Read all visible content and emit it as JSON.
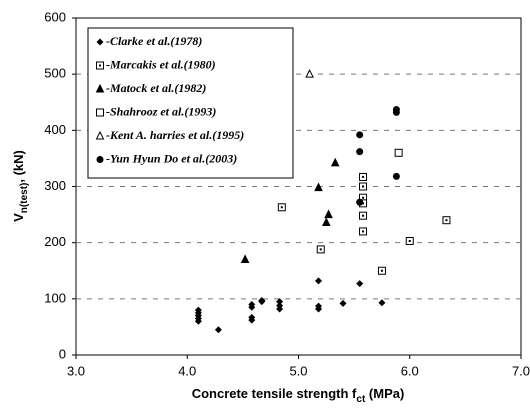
{
  "chart_data": {
    "type": "scatter",
    "xlabel": "Concrete tensile strength f",
    "xlabel_sub": "ct",
    "xlabel_end": " (MPa)",
    "ylabel": "V",
    "ylabel_sub": "n(test)",
    "ylabel_end": ", (kN)",
    "xlim": [
      3,
      7
    ],
    "xticks": [
      {
        "value": 3,
        "label": "3.0"
      },
      {
        "value": 4,
        "label": "4.0"
      },
      {
        "value": 5,
        "label": "5.0"
      },
      {
        "value": 6,
        "label": "6.0"
      },
      {
        "value": 7,
        "label": "7.0"
      }
    ],
    "ylim": [
      0,
      600
    ],
    "yticks": [
      0,
      100,
      200,
      300,
      400,
      500,
      600
    ],
    "grid": true,
    "legend": "upper left",
    "series": [
      {
        "name": "-Clarke et al.(1978)",
        "color": "#000000",
        "marker": "diamond",
        "x": [
          4.1,
          4.1,
          4.1,
          4.1,
          4.1,
          4.28,
          4.58,
          4.58,
          4.58,
          4.58,
          4.67,
          4.67,
          4.83,
          4.83,
          4.83,
          5.18,
          5.18,
          5.18,
          5.4,
          5.55,
          5.75
        ],
        "values": [
          60,
          65,
          70,
          75,
          80,
          45,
          62,
          67,
          85,
          90,
          95,
          97,
          82,
          88,
          95,
          82,
          87,
          132,
          92,
          127,
          93
        ]
      },
      {
        "name": "-Marcakis et al.(1980)",
        "color": "#000000",
        "marker": "square-dot",
        "x": [
          4.85,
          5.2,
          5.58,
          5.58,
          5.58,
          5.58,
          5.58,
          5.58,
          5.75,
          6.0,
          6.33
        ],
        "values": [
          263,
          188,
          317,
          300,
          280,
          270,
          248,
          220,
          150,
          203,
          240
        ]
      },
      {
        "name": "-Matock et al.(1982)",
        "color": "#000000",
        "marker": "triangle",
        "x": [
          4.52,
          5.18,
          5.25,
          5.27,
          5.33
        ],
        "values": [
          170,
          298,
          236,
          250,
          342
        ]
      },
      {
        "name": "-Shahrooz et al.(1993)",
        "color": "#000000",
        "marker": "square",
        "x": [
          5.9
        ],
        "values": [
          360
        ]
      },
      {
        "name": "-Kent A. harries et al.(1995)",
        "color": "#000000",
        "marker": "triangle-open",
        "x": [
          5.1
        ],
        "values": [
          500
        ]
      },
      {
        "name": "-Yun Hyun Do et al.(2003)",
        "color": "#000000",
        "marker": "circle",
        "x": [
          5.55,
          5.55,
          5.55,
          5.88,
          5.88,
          5.88
        ],
        "values": [
          392,
          362,
          272,
          437,
          432,
          318
        ]
      }
    ]
  }
}
